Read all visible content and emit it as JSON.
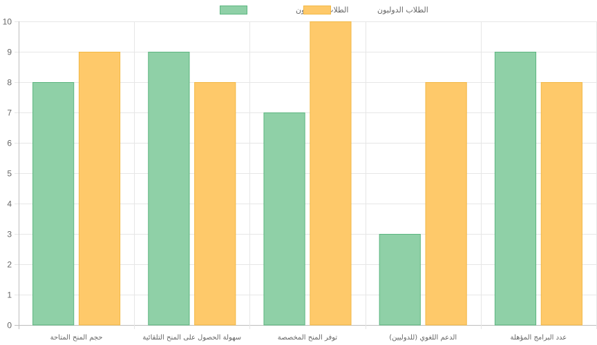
{
  "chart_data": {
    "type": "bar",
    "categories": [
      "حجم المنح المتاحة",
      "سهولة الحصول على المنح التلقائية",
      "توفر المنح المخصصة",
      "الدعم اللغوي (للدوليين)",
      "عدد البرامج المؤهلة"
    ],
    "series": [
      {
        "name": "الطلاب المحليون",
        "values": [
          8,
          9,
          7,
          3,
          9
        ],
        "color": "#8fd0a7",
        "border": "#5bb57f"
      },
      {
        "name": "الطلاب الدوليون",
        "values": [
          9,
          8,
          10,
          8,
          8
        ],
        "color": "#fec96a",
        "border": "#f2b845"
      }
    ],
    "ylim": [
      0,
      10
    ],
    "yticks": [
      0,
      1,
      2,
      3,
      4,
      5,
      6,
      7,
      8,
      9,
      10
    ],
    "grid": true,
    "legend_position": "top"
  }
}
